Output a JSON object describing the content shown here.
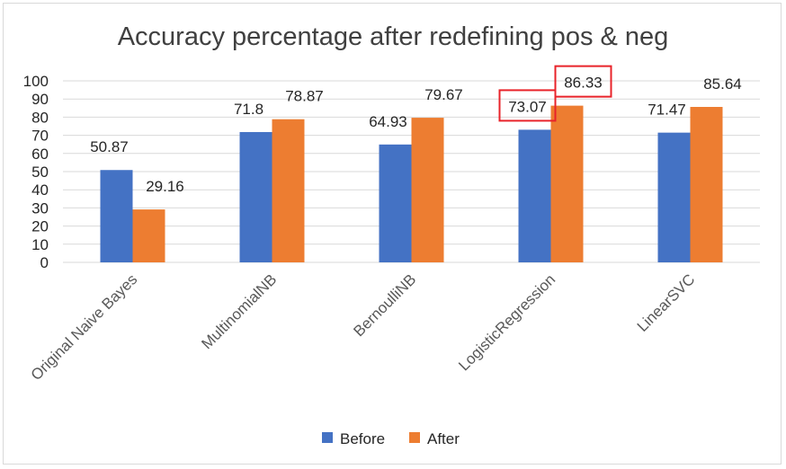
{
  "chart_data": {
    "type": "bar",
    "title": "Accuracy percentage after redefining pos & neg",
    "categories": [
      "Original Naive Bayes",
      "MultinomialNB",
      "BernoulliNB",
      "LogisticRegression",
      "LinearSVC"
    ],
    "series": [
      {
        "name": "Before",
        "values": [
          50.87,
          71.8,
          64.93,
          73.07,
          71.47
        ],
        "color": "#4472c4",
        "labels": [
          "50.87",
          "71.8",
          "64.93",
          "73.07",
          "71.47"
        ]
      },
      {
        "name": "After",
        "values": [
          29.16,
          78.87,
          79.67,
          86.33,
          85.64
        ],
        "color": "#ed7d31",
        "labels": [
          "29.16",
          "78.87",
          "79.67",
          "86.33",
          "85.64"
        ]
      }
    ],
    "ylim": [
      0,
      100
    ],
    "yticks": [
      "0",
      "10",
      "20",
      "30",
      "40",
      "50",
      "60",
      "70",
      "80",
      "90",
      "100"
    ],
    "grid": true,
    "legend": "bottom",
    "highlighted_labels": [
      {
        "series": "Before",
        "category": "LogisticRegression"
      },
      {
        "series": "After",
        "category": "LogisticRegression"
      }
    ],
    "highlight_color": "#e8232a"
  }
}
